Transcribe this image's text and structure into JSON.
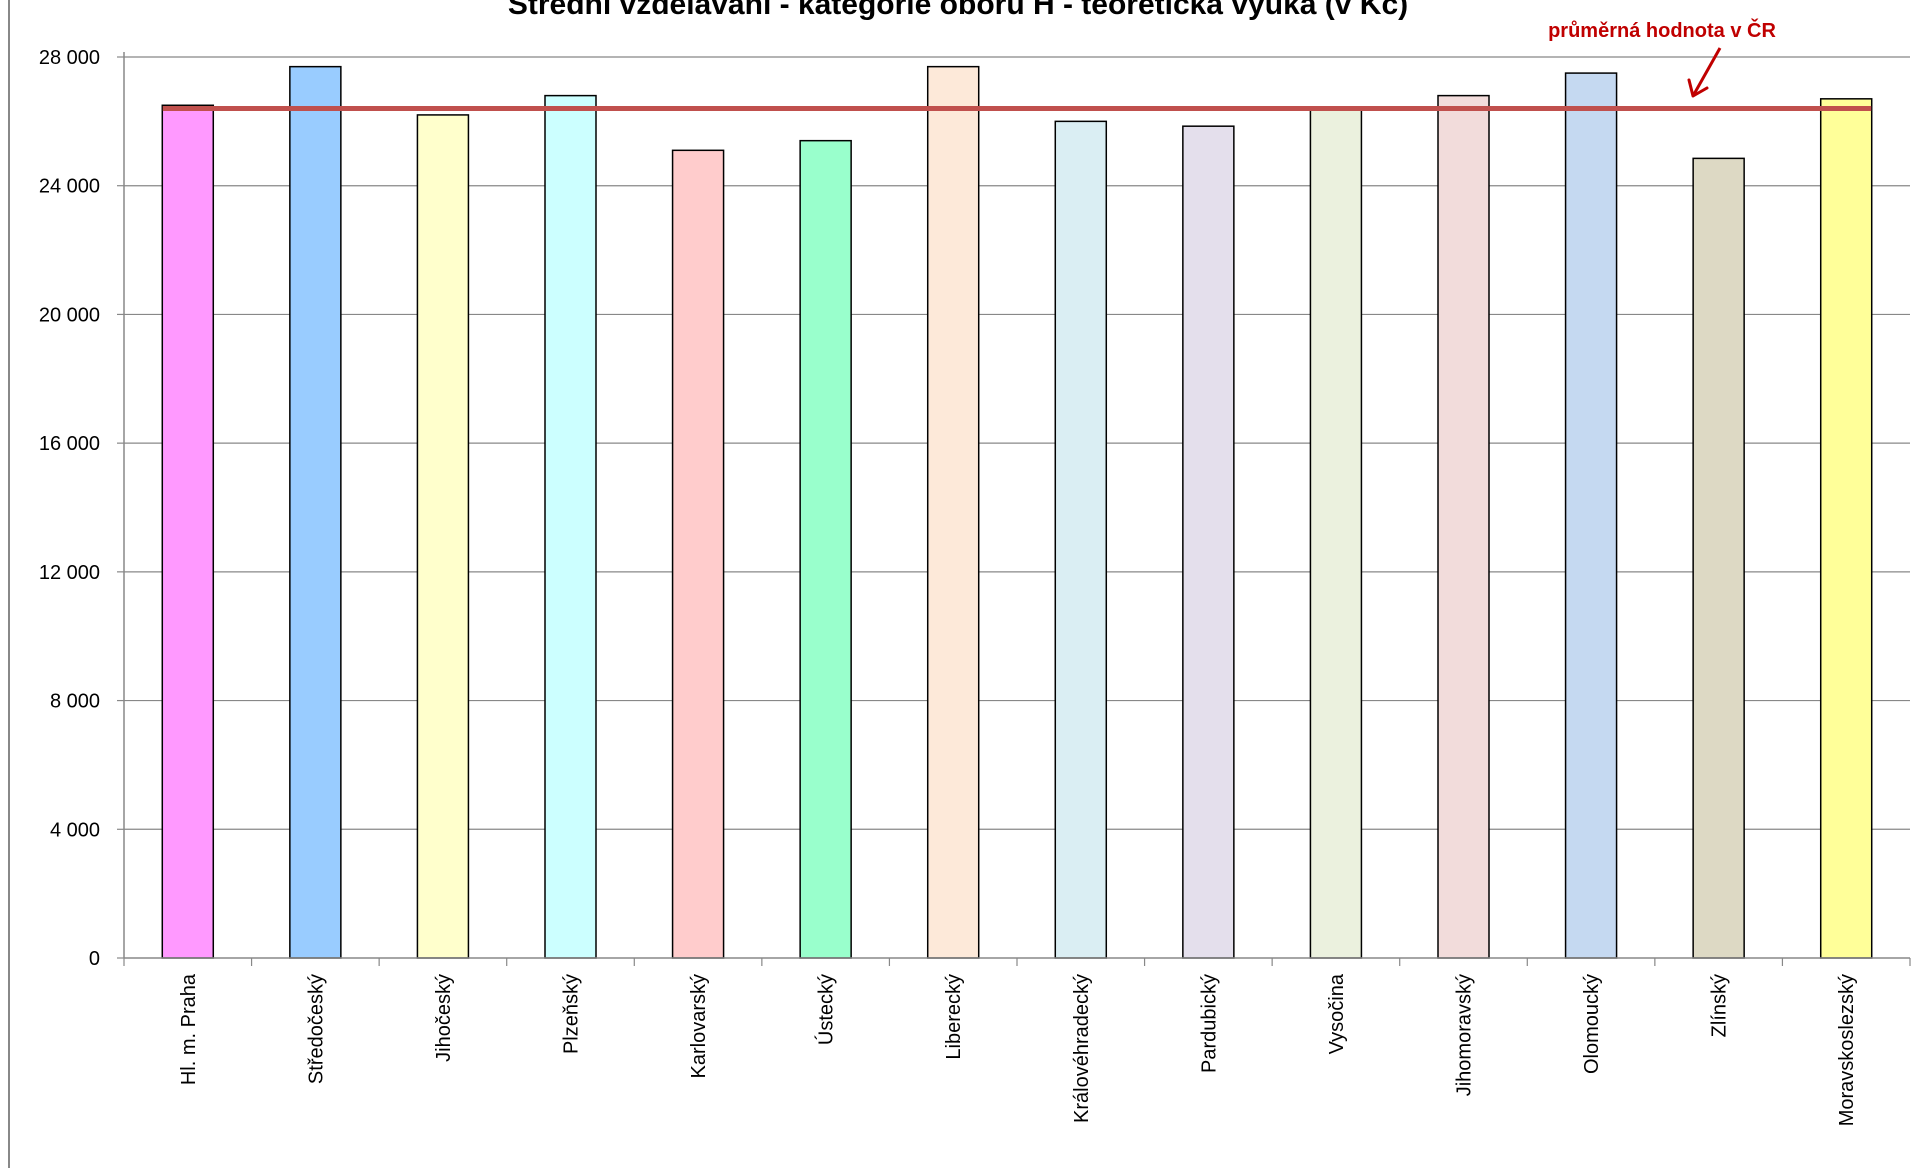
{
  "chart_data": {
    "type": "bar",
    "title": "Střední vzdělávání - kategorie oboru H - teoretická výuka (v Kč)",
    "categories": [
      "Hl. m. Praha",
      "Středočeský",
      "Jihočeský",
      "Plzeňský",
      "Karlovarský",
      "Ústecký",
      "Liberecký",
      "Královéhradecký",
      "Pardubický",
      "Vysočina",
      "Jihomoravský",
      "Olomoucký",
      "Zlínský",
      "Moravskoslezský"
    ],
    "values": [
      26500,
      27700,
      26200,
      26800,
      25100,
      25400,
      27700,
      26000,
      25850,
      26450,
      26800,
      27500,
      24850,
      26700
    ],
    "bar_colors": [
      "#ff99ff",
      "#99ccff",
      "#ffffcc",
      "#ccffff",
      "#ffcccc",
      "#99ffcc",
      "#fde9d9",
      "#daeef3",
      "#e4dfec",
      "#ebf1de",
      "#f2dcdb",
      "#c5d9f1",
      "#ddd9c4",
      "#ffff99"
    ],
    "average": {
      "value": 26400,
      "label": "průměrná hodnota v ČR",
      "color": "#c0504d",
      "label_color": "#c00000"
    },
    "yticks": [
      0,
      4000,
      8000,
      12000,
      16000,
      20000,
      24000,
      28000
    ],
    "ytick_labels": [
      "0",
      "4 000",
      "8 000",
      "12 000",
      "16 000",
      "20 000",
      "24 000",
      "28 000"
    ],
    "ylim": [
      0,
      28000
    ],
    "xlabel": "",
    "ylabel": "",
    "grid": true,
    "legend": "none"
  }
}
